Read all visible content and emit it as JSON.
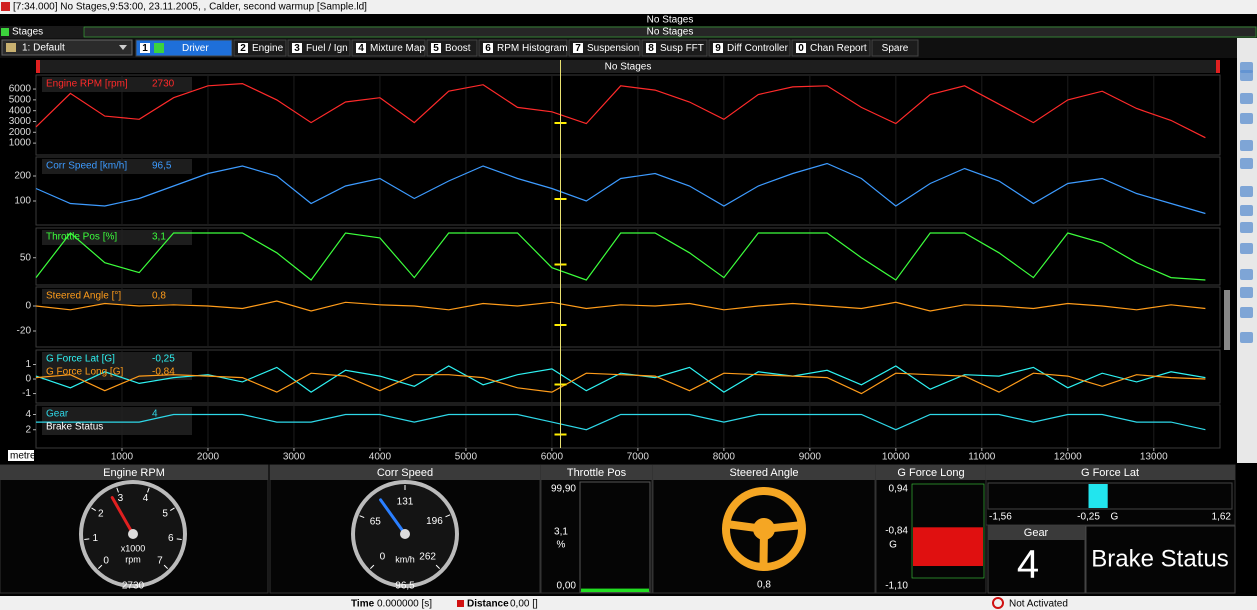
{
  "title_bar": "[7:34.000] No Stages,9:53:00, 23.11.2005, , Calder, second warmup [Sample.ld]",
  "stages": {
    "label": "Stages",
    "value": "No Stages"
  },
  "stage_bar": "No Stages",
  "layout_select": "1: Default",
  "tabs": [
    {
      "key": "1",
      "label": "Driver",
      "active": true
    },
    {
      "key": "2",
      "label": "Engine"
    },
    {
      "key": "3",
      "label": "Fuel / Ign"
    },
    {
      "key": "4",
      "label": "Mixture Map"
    },
    {
      "key": "5",
      "label": "Boost"
    },
    {
      "key": "6",
      "label": "RPM Histogram"
    },
    {
      "key": "7",
      "label": "Suspension"
    },
    {
      "key": "8",
      "label": "Susp FFT"
    },
    {
      "key": "9",
      "label": "Diff Controller"
    },
    {
      "key": "0",
      "label": "Chan Report"
    },
    {
      "label": "Spare"
    }
  ],
  "graph": {
    "banner": "No Stages",
    "x_unit": "metre",
    "xlim": [
      0,
      13770
    ],
    "xticks": [
      1000,
      2000,
      3000,
      4000,
      5000,
      6000,
      7000,
      8000,
      9000,
      10000,
      11000,
      12000,
      13000
    ],
    "grid": true,
    "cursor": 6100,
    "x": [
      0,
      400,
      800,
      1200,
      1600,
      2000,
      2400,
      2800,
      3200,
      3600,
      4000,
      4400,
      4800,
      5200,
      5600,
      6000,
      6400,
      6800,
      7200,
      7600,
      8000,
      8400,
      8800,
      9200,
      9600,
      10000,
      10400,
      10800,
      11200,
      11600,
      12000,
      12400,
      12800,
      13200,
      13600
    ],
    "panels": [
      {
        "ylim": [
          -100,
          7300
        ],
        "yticks": [
          1000,
          2000,
          3000,
          4000,
          5000,
          6000
        ],
        "channels": [
          {
            "name": "Engine RPM [rpm]",
            "readout": "2730",
            "color": "#ff2a2a",
            "values": [
              2500,
              5600,
              3500,
              3200,
              5200,
              6300,
              6500,
              5000,
              2900,
              4800,
              5200,
              2900,
              5800,
              6400,
              4300,
              3900,
              2800,
              6300,
              5900,
              4800,
              3200,
              5500,
              6200,
              6300,
              4300,
              2800,
              5500,
              6300,
              4600,
              2900,
              5000,
              5800,
              4200,
              3100,
              1500
            ]
          }
        ]
      },
      {
        "ylim": [
          4,
          276
        ],
        "yticks": [
          100,
          200
        ],
        "channels": [
          {
            "name": "Corr Speed [km/h]",
            "readout": "96,5",
            "color": "#3d9bff",
            "values": [
              150,
              90,
              80,
              110,
              160,
              210,
              240,
              200,
              90,
              160,
              190,
              110,
              180,
              240,
              190,
              150,
              100,
              190,
              210,
              160,
              80,
              160,
              210,
              250,
              190,
              80,
              170,
              230,
              180,
              90,
              170,
              190,
              130,
              90,
              50
            ]
          }
        ]
      },
      {
        "ylim": [
          -5,
          110
        ],
        "yticks": [
          50
        ],
        "channels": [
          {
            "name": "Throttle Pos [%]",
            "readout": "3,1",
            "color": "#3cff3c",
            "values": [
              10,
              100,
              40,
              20,
              100,
              100,
              100,
              60,
              5,
              100,
              90,
              10,
              100,
              100,
              100,
              30,
              5,
              100,
              100,
              60,
              10,
              100,
              100,
              100,
              50,
              5,
              100,
              100,
              60,
              10,
              100,
              80,
              40,
              10,
              5
            ]
          }
        ]
      },
      {
        "ylim": [
          -32.8,
          15.2
        ],
        "yticks": [
          -20,
          0
        ],
        "channels": [
          {
            "name": "Steered Angle [°]",
            "readout": "0,8",
            "color": "#ff9c1a",
            "values": [
              0,
              -3,
              2,
              0,
              1,
              0,
              -2,
              4,
              -4,
              3,
              1,
              0,
              -3,
              2,
              0,
              3,
              -2,
              1,
              0,
              2,
              -3,
              0,
              2,
              0,
              -2,
              3,
              -4,
              1,
              0,
              -2,
              2,
              0,
              -3,
              1,
              -2
            ]
          }
        ]
      },
      {
        "ylim": [
          -1.65,
          2
        ],
        "yticks": [
          -1,
          0,
          1
        ],
        "channels": [
          {
            "name": "G Force Lat [G]",
            "readout": "-0,25",
            "color": "#2ef2f2",
            "values": [
              0.2,
              -0.6,
              0.5,
              -0.3,
              0.1,
              0.3,
              -0.2,
              0.8,
              -0.9,
              0.6,
              0.2,
              -0.5,
              0.9,
              -0.4,
              0.3,
              0.7,
              -0.8,
              0.4,
              0.1,
              0.8,
              -0.9,
              0.5,
              0.2,
              0.6,
              -0.4,
              0.9,
              -0.7,
              0.3,
              0.2,
              0.8,
              -0.6,
              0.4,
              -0.2,
              0.5,
              0.1
            ]
          },
          {
            "name": "G Force Long [G]",
            "readout": "-0,84",
            "color": "#ff9c1a",
            "values": [
              0.1,
              0.3,
              -0.8,
              0.2,
              0.3,
              0.2,
              0.1,
              -0.9,
              0.4,
              0.2,
              -0.8,
              0.3,
              0.3,
              0.1,
              -0.6,
              -0.9,
              0.4,
              0.3,
              0.2,
              -0.8,
              0.4,
              0.3,
              0.2,
              0.1,
              -1.0,
              0.4,
              0.3,
              0.2,
              -0.9,
              0.4,
              0.2,
              -0.5,
              0.3,
              0.1,
              0.0
            ]
          }
        ]
      },
      {
        "ylim": [
          -0.4,
          5.25
        ],
        "yticks": [
          2,
          4
        ],
        "channels": [
          {
            "name": "Gear",
            "readout": "4",
            "color": "#2ed8e8",
            "values": [
              3,
              3,
              3,
              3,
              4,
              4,
              4,
              3,
              3,
              4,
              4,
              3,
              4,
              4,
              4,
              3,
              2,
              4,
              4,
              4,
              3,
              4,
              4,
              4,
              4,
              2,
              4,
              4,
              4,
              3,
              4,
              4,
              3,
              3,
              2
            ]
          },
          {
            "name": "Brake Status",
            "color": "#ffffff"
          }
        ]
      }
    ]
  },
  "gauges": {
    "engine_rpm": {
      "title": "Engine RPM",
      "lim": [
        0,
        7000
      ],
      "ticks": [
        {
          "value": 0,
          "label": "0"
        },
        {
          "value": 1000,
          "label": "1"
        },
        {
          "value": 2000,
          "label": "2"
        },
        {
          "value": 3000,
          "label": "3"
        },
        {
          "value": 4000,
          "label": "4"
        },
        {
          "value": 5000,
          "label": "5"
        },
        {
          "value": 6000,
          "label": "6"
        },
        {
          "value": 7000,
          "label": "7"
        }
      ],
      "multiplier": "x1000",
      "unit": "rpm",
      "value": 2730,
      "needle_color": "#e02020"
    },
    "corr_speed": {
      "title": "Corr Speed",
      "lim": [
        0,
        262
      ],
      "ticks": [
        0,
        65,
        131,
        196,
        262
      ],
      "unit": "km/h",
      "value": {
        "value": 96.5,
        "label": "96,5"
      },
      "needle_color": "#2a7fff"
    },
    "throttle_pos": {
      "title": "Throttle Pos",
      "max": {
        "value": 99.9,
        "label": "99,90"
      },
      "min": {
        "value": 0,
        "label": "0,00"
      },
      "value": {
        "value": 3.1,
        "label": "3,1"
      },
      "unit": "%",
      "color": "#22dd22"
    },
    "steered_angle": {
      "title": "Steered Angle",
      "value": {
        "value": 0.8,
        "label": "0,8"
      },
      "color": "#f5a623"
    },
    "g_force_long": {
      "title": "G Force Long",
      "max": {
        "value": 0.94,
        "label": "0,94"
      },
      "min": {
        "value": -1.1,
        "label": "-1,10"
      },
      "value": {
        "value": -0.84,
        "label": "-0,84"
      },
      "unit": "G",
      "color": "#e01010"
    },
    "g_force_lat": {
      "title": "G Force Lat",
      "min": {
        "value": -1.56,
        "label": "-1,56"
      },
      "max": {
        "value": 1.62,
        "label": "1,62"
      },
      "value": {
        "value": -0.25,
        "label": "-0,25"
      },
      "unit": "G",
      "color": "#22e5ee"
    },
    "gear": {
      "title": "Gear",
      "value": 4
    },
    "brake_status": {
      "title": "Brake Status"
    }
  },
  "status": {
    "time_label": "Time",
    "time_value": "0.000000 [s]",
    "distance_label": "Distance",
    "distance_value": "0,00 []",
    "mode": "Not Activated"
  }
}
